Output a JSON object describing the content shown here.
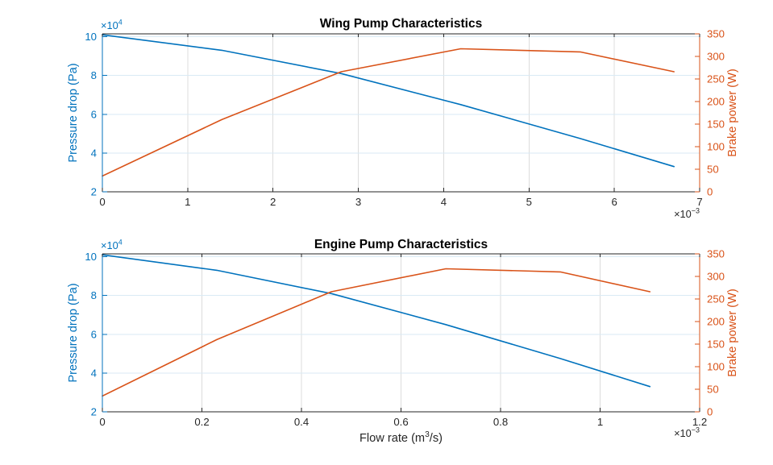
{
  "figure": {
    "xlabel": {
      "pre": "Flow rate (m",
      "sup": "3",
      "post": "/s)"
    },
    "colors": {
      "pressure_blue": "#0072BD",
      "power_orange": "#D95319",
      "axis_dark": "#262626",
      "grid_horizontal": "#d9eaf5",
      "grid_vertical": "#dcdcdc",
      "background": "#ffffff"
    }
  },
  "chart_data": [
    {
      "type": "line",
      "title": "Wing Pump Characteristics",
      "x_units_note": "flow rate in units of 1e-3 m^3/s",
      "x": [
        0,
        1.4,
        2.8,
        4.2,
        5.6,
        6.7
      ],
      "xlim": [
        0,
        7
      ],
      "x_tick_labels": [
        "0",
        "1",
        "2",
        "3",
        "4",
        "5",
        "6",
        "7"
      ],
      "x_exponent": {
        "pre": "×10",
        "sup": "−3"
      },
      "series": [
        {
          "name": "Pressure drop",
          "axis": "left",
          "color": "#0072BD",
          "values": [
            10.1,
            9.3,
            8.1,
            6.5,
            4.75,
            3.3
          ]
        },
        {
          "name": "Brake power",
          "axis": "right",
          "color": "#D95319",
          "values": [
            35,
            160,
            266,
            317,
            310,
            266
          ]
        }
      ],
      "left_axis": {
        "label": "Pressure drop (Pa)",
        "units_note": "values in 1e4 Pa",
        "exponent": {
          "pre": "×10",
          "sup": "4"
        },
        "ticks": [
          2,
          4,
          6,
          8,
          10
        ],
        "lim": [
          2,
          10.15
        ]
      },
      "right_axis": {
        "label": "Brake power (W)",
        "ticks": [
          0,
          50,
          100,
          150,
          200,
          250,
          300,
          350
        ],
        "lim": [
          0,
          350
        ]
      },
      "grid": true,
      "legend": "none"
    },
    {
      "type": "line",
      "title": "Engine Pump Characteristics",
      "x_units_note": "flow rate in units of 1e-3 m^3/s",
      "x": [
        0,
        0.23,
        0.46,
        0.69,
        0.92,
        1.1
      ],
      "xlim": [
        0,
        1.2
      ],
      "x_tick_labels": [
        "0",
        "0.2",
        "0.4",
        "0.6",
        "0.8",
        "1",
        "1.2"
      ],
      "x_exponent": {
        "pre": "×10",
        "sup": "−3"
      },
      "series": [
        {
          "name": "Pressure drop",
          "axis": "left",
          "color": "#0072BD",
          "values": [
            10.1,
            9.3,
            8.1,
            6.5,
            4.75,
            3.3
          ]
        },
        {
          "name": "Brake power",
          "axis": "right",
          "color": "#D95319",
          "values": [
            35,
            160,
            266,
            317,
            310,
            266
          ]
        }
      ],
      "left_axis": {
        "label": "Pressure drop (Pa)",
        "units_note": "values in 1e4 Pa",
        "exponent": {
          "pre": "×10",
          "sup": "4"
        },
        "ticks": [
          2,
          4,
          6,
          8,
          10
        ],
        "lim": [
          2,
          10.15
        ]
      },
      "right_axis": {
        "label": "Brake power (W)",
        "ticks": [
          0,
          50,
          100,
          150,
          200,
          250,
          300,
          350
        ],
        "lim": [
          0,
          350
        ]
      },
      "grid": true,
      "legend": "none"
    }
  ]
}
